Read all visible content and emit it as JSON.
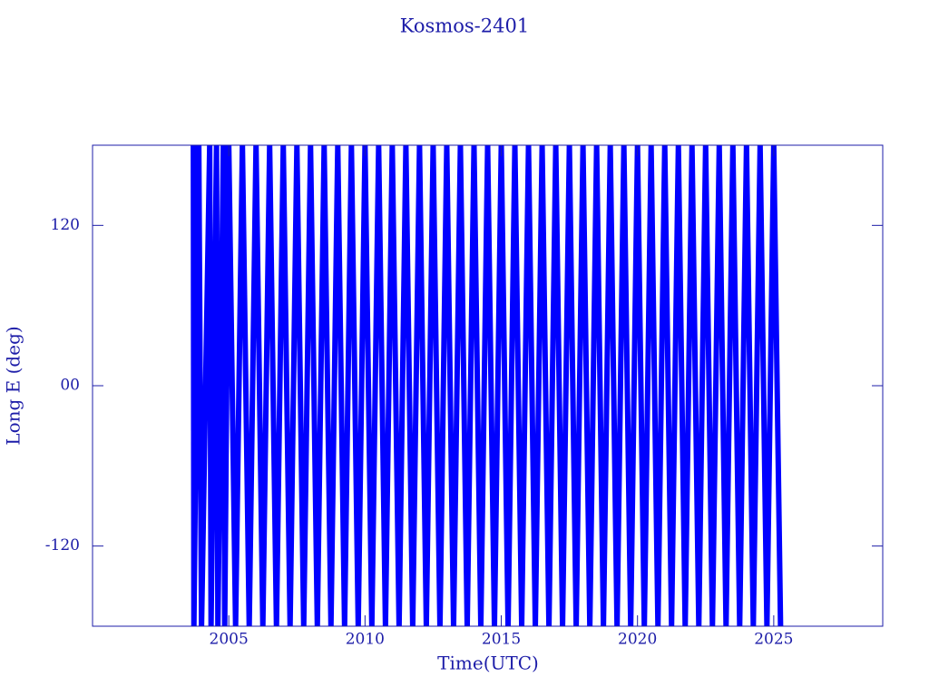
{
  "chart_data": {
    "type": "line",
    "title": "Kosmos-2401",
    "x_label": "Time(UTC)",
    "y_label": "Long E (deg)",
    "xlim": [
      2000,
      2029
    ],
    "ylim": [
      -180,
      180
    ],
    "xticks": [
      2005,
      2010,
      2015,
      2020,
      2025
    ],
    "yticks": [
      -120,
      {
        "value": 0,
        "label": "00"
      },
      120
    ],
    "axis_color": "#1c1ca8",
    "series": [
      {
        "color": "#0000ff",
        "x": [
          2003.7,
          2003.72,
          2003.9,
          2004.0,
          2004.3,
          2004.35,
          2004.55,
          2004.6,
          2004.8,
          2004.85,
          2005,
          2005.25,
          2005.5,
          2005.75,
          2006,
          2006.25,
          2006.5,
          2006.75,
          2007,
          2007.25,
          2007.5,
          2007.75,
          2008,
          2008.25,
          2008.5,
          2008.75,
          2009,
          2009.25,
          2009.5,
          2009.75,
          2010,
          2010.25,
          2010.5,
          2010.75,
          2011,
          2011.25,
          2011.5,
          2011.75,
          2012,
          2012.25,
          2012.5,
          2012.75,
          2013,
          2013.25,
          2013.5,
          2013.75,
          2014,
          2014.25,
          2014.5,
          2014.75,
          2015,
          2015.25,
          2015.5,
          2015.75,
          2016,
          2016.25,
          2016.5,
          2016.75,
          2017,
          2017.25,
          2017.5,
          2017.75,
          2018,
          2018.25,
          2018.5,
          2018.75,
          2019,
          2019.25,
          2019.5,
          2019.75,
          2020,
          2020.25,
          2020.5,
          2020.75,
          2021,
          2021.25,
          2021.5,
          2021.75,
          2022,
          2022.25,
          2022.5,
          2022.75,
          2023,
          2023.25,
          2023.5,
          2023.75,
          2024,
          2024.25,
          2024.5,
          2024.75,
          2025,
          2025.25
        ],
        "values": [
          180,
          -180,
          180,
          -180,
          180,
          -180,
          180,
          -180,
          180,
          -180,
          180,
          -180,
          180,
          -180,
          180,
          -180,
          180,
          -180,
          180,
          -180,
          180,
          -180,
          180,
          -180,
          180,
          -180,
          180,
          -180,
          180,
          -180,
          180,
          -180,
          180,
          -180,
          180,
          -180,
          180,
          -180,
          180,
          -180,
          180,
          -180,
          180,
          -180,
          180,
          -180,
          180,
          -180,
          180,
          -180,
          180,
          -180,
          180,
          -180,
          180,
          -180,
          180,
          -180,
          180,
          -180,
          180,
          -180,
          180,
          -180,
          180,
          -180,
          180,
          -180,
          180,
          -180,
          180,
          -180,
          180,
          -180,
          180,
          -180,
          180,
          -180,
          180,
          -180,
          180,
          -180,
          180,
          -180,
          180,
          -180,
          180,
          -180,
          180,
          -180,
          180,
          -180
        ]
      }
    ]
  }
}
